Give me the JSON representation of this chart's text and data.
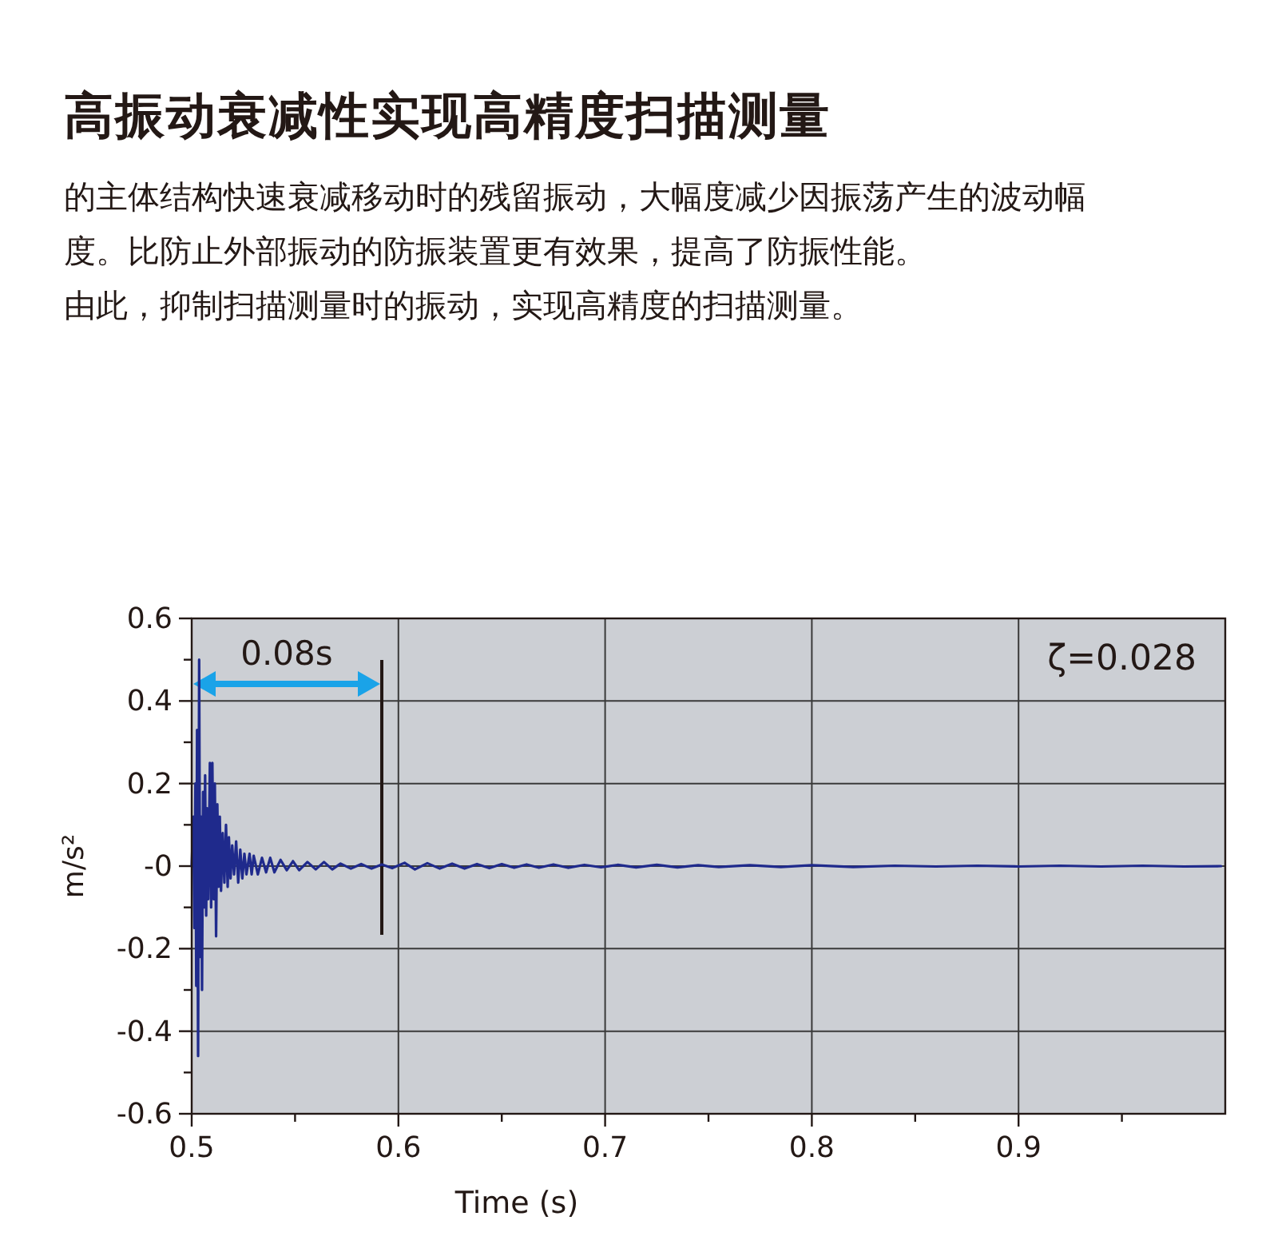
{
  "chart_data": {
    "type": "line",
    "title": "高振动衰减性实现高精度扫描测量",
    "subtitle": "的主体结构快速衰减移动时的残留振动，大幅度减少因振荡产生的波动幅度。比防止外部振动的防振装置更有效果，提高了防振性能。",
    "xlabel": "Time (s)",
    "ylabel": "m/s²",
    "annotations": [
      "0.08s",
      "ζ=0.028",
      "由此，抑制扫描测量时的振动，实现高精度的扫描测量。"
    ],
    "xlim": [
      0.5,
      1.0
    ],
    "ylim": [
      -0.6,
      0.6
    ],
    "xticks": [
      0.5,
      {
        "value": 0.55,
        "label": null
      },
      0.6,
      {
        "value": 0.65,
        "label": null
      },
      0.7,
      {
        "value": 0.75,
        "label": null
      },
      0.8,
      {
        "value": 0.85,
        "label": null
      },
      0.9,
      {
        "value": 0.95,
        "label": null
      }
    ],
    "yticks": [
      -0.6,
      {
        "value": -0.5,
        "label": null
      },
      -0.4,
      {
        "value": -0.3,
        "label": null
      },
      -0.2,
      {
        "value": -0.1,
        "label": null
      },
      {
        "value": 0,
        "label": "-0"
      },
      {
        "value": 0.1,
        "label": null
      },
      0.2,
      {
        "value": 0.3,
        "label": null
      },
      0.4,
      {
        "value": 0.5,
        "label": null
      },
      0.6
    ],
    "grid": true,
    "marker": "none",
    "line_style": "solid",
    "series": [
      {
        "color": "#1f2a8c",
        "x": [
          0.5,
          0.5008,
          0.5013,
          0.5018,
          0.5022,
          0.5026,
          0.5031,
          0.5036,
          0.5041,
          0.5046,
          0.505,
          0.5055,
          0.506,
          0.5065,
          0.507,
          0.5075,
          0.508,
          0.5088,
          0.5094,
          0.51,
          0.5106,
          0.5112,
          0.5118,
          0.5124,
          0.513,
          0.5136,
          0.5142,
          0.515,
          0.5158,
          0.5166,
          0.5174,
          0.518,
          0.5188,
          0.5196,
          0.5205,
          0.5215,
          0.5225,
          0.5235,
          0.5245,
          0.5255,
          0.5265,
          0.528,
          0.529,
          0.53,
          0.532,
          0.534,
          0.536,
          0.538,
          0.54,
          0.543,
          0.546,
          0.549,
          0.552,
          0.556,
          0.56,
          0.564,
          0.568,
          0.572,
          0.577,
          0.582,
          0.587,
          0.592,
          0.597,
          0.603,
          0.608,
          0.614,
          0.62,
          0.626,
          0.632,
          0.638,
          0.644,
          0.65,
          0.656,
          0.662,
          0.668,
          0.675,
          0.682,
          0.69,
          0.698,
          0.706,
          0.715,
          0.725,
          0.735,
          0.745,
          0.755,
          0.77,
          0.785,
          0.8,
          0.82,
          0.84,
          0.86,
          0.88,
          0.9,
          0.92,
          0.94,
          0.96,
          0.98,
          0.998
        ],
        "values": [
          0,
          0.12,
          -0.15,
          0.2,
          -0.29,
          0.33,
          -0.46,
          0.5,
          -0.22,
          0.12,
          -0.3,
          0.18,
          -0.1,
          0.22,
          -0.12,
          0.14,
          -0.08,
          0.25,
          -0.1,
          0.25,
          -0.08,
          0.2,
          -0.17,
          0.15,
          -0.05,
          0.12,
          -0.06,
          0.08,
          -0.04,
          0.1,
          -0.05,
          0.07,
          -0.03,
          0.05,
          -0.02,
          0.06,
          -0.04,
          0.04,
          -0.03,
          0.03,
          -0.02,
          0.03,
          -0.02,
          0.025,
          -0.02,
          0.02,
          -0.015,
          0.02,
          -0.015,
          0.015,
          -0.01,
          0.012,
          -0.01,
          0.01,
          -0.008,
          0.01,
          -0.008,
          0.006,
          -0.006,
          0.005,
          -0.006,
          0.004,
          -0.005,
          0.008,
          -0.008,
          0.007,
          -0.006,
          0.006,
          -0.006,
          0.005,
          -0.005,
          0.005,
          -0.004,
          0.004,
          -0.004,
          0.004,
          -0.004,
          0.003,
          -0.003,
          0.003,
          -0.003,
          0.003,
          -0.003,
          0.002,
          -0.002,
          0.002,
          -0.002,
          0.002,
          -0.002,
          0.001,
          -0.001,
          0.001,
          -0.001,
          0.001,
          -0.001,
          0.001,
          -0.001,
          0
        ]
      }
    ]
  }
}
